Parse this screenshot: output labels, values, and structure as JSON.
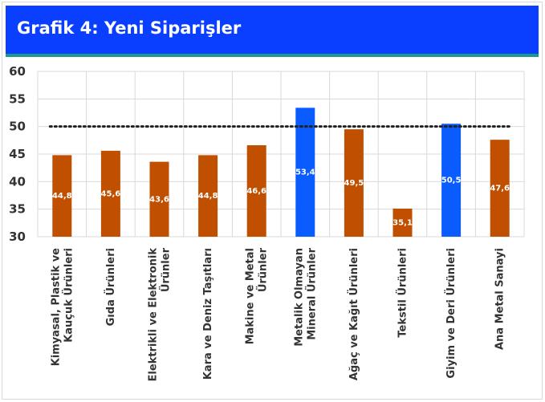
{
  "header": {
    "title": "Grafik 4: Yeni Siparişler"
  },
  "colors": {
    "title_bg": "#0b3fff",
    "rule": "#1a9a8c",
    "bar": "#c05000",
    "bar_highlight": "#0b5cff",
    "threshold": "#222222"
  },
  "chart_data": {
    "type": "bar",
    "title": "",
    "xlabel": "",
    "ylabel": "",
    "ylim": [
      30,
      60
    ],
    "yticks": [
      30,
      35,
      40,
      45,
      50,
      55,
      60
    ],
    "grid": true,
    "categories": [
      [
        "Kimyasal, Plastik ve",
        "Kauçuk Ürünleri"
      ],
      [
        "Gıda Ürünleri"
      ],
      [
        "Elektrikli ve Elektronik",
        "Ürünler"
      ],
      [
        "Kara ve Deniz Taşıtları"
      ],
      [
        "Makine ve Metal",
        "Ürünler"
      ],
      [
        "Metalik Olmayan",
        "Mineral Ürünler"
      ],
      [
        "Ağaç ve Kağıt Ürünleri"
      ],
      [
        "Tekstil Ürünleri"
      ],
      [
        "Giyim ve Deri Ürünleri"
      ],
      [
        "Ana Metal Sanayi"
      ]
    ],
    "values": [
      44.8,
      45.6,
      43.6,
      44.8,
      46.6,
      53.4,
      49.5,
      35.1,
      50.5,
      47.6
    ],
    "data_labels": [
      "44,8",
      "45,6",
      "43,6",
      "44,8",
      "46,6",
      "53,4",
      "49,5",
      "35,1",
      "50,5",
      "47,6"
    ],
    "highlighted": [
      false,
      false,
      false,
      false,
      false,
      true,
      false,
      false,
      true,
      false
    ],
    "threshold": 50
  }
}
